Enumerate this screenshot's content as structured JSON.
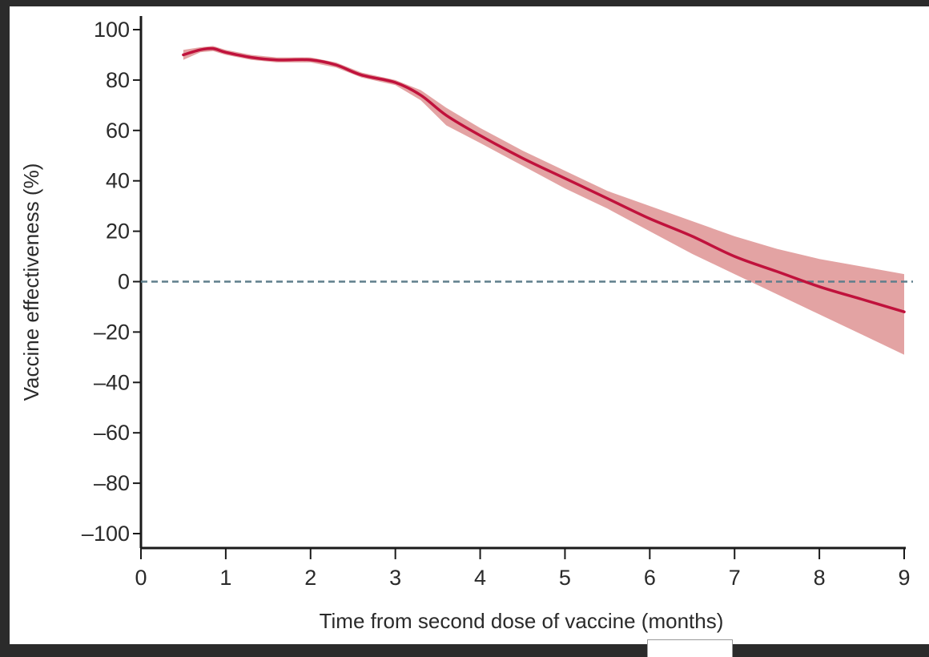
{
  "chart_data": {
    "type": "line",
    "xlabel": "Time from second dose of vaccine (months)",
    "ylabel": "Vaccine effectiveness (%)",
    "xlim": [
      0,
      9
    ],
    "ylim": [
      -100,
      100
    ],
    "x_ticks": [
      0,
      1,
      2,
      3,
      4,
      5,
      6,
      7,
      8,
      9
    ],
    "y_ticks": [
      100,
      80,
      60,
      40,
      20,
      0,
      -20,
      -40,
      -60,
      -80,
      -100
    ],
    "y_tick_labels": [
      "100",
      "80",
      "60",
      "40",
      "20",
      "0",
      "–20",
      "–40",
      "–60",
      "–80",
      "–100"
    ],
    "reference_line": {
      "y": 0,
      "style": "dashed"
    },
    "grid": false,
    "series": [
      {
        "x": [
          0.5,
          0.7,
          0.85,
          1.0,
          1.3,
          1.6,
          2.0,
          2.3,
          2.6,
          3.0,
          3.3,
          3.6,
          4.0,
          4.5,
          5.0,
          5.5,
          6.0,
          6.5,
          7.0,
          7.5,
          8.0,
          8.5,
          9.0
        ],
        "values": [
          90,
          92,
          92.5,
          91,
          89,
          88,
          88,
          86,
          82,
          79,
          74,
          66,
          58,
          49,
          41,
          33,
          25,
          18,
          10,
          4,
          -2,
          -7,
          -12
        ],
        "lower": [
          88,
          91,
          91.5,
          90,
          88,
          87,
          87,
          85,
          81,
          78,
          72,
          62,
          55,
          46,
          37,
          29,
          20,
          11,
          3,
          -5,
          -13,
          -21,
          -29
        ],
        "upper": [
          92,
          93,
          93.5,
          92,
          90,
          89,
          89,
          87,
          83,
          80,
          76,
          69,
          61,
          52,
          44,
          36,
          30,
          24,
          18,
          13,
          9,
          6,
          3
        ],
        "color": "#c0123c",
        "band_color": "#e3a3a3"
      }
    ]
  }
}
